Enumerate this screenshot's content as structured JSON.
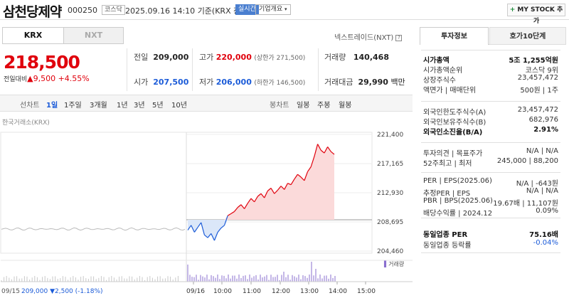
{
  "header": {
    "title": "삼천당제약",
    "code": "000250",
    "market": "코스닥",
    "datetime": "2025.09.16 14:10",
    "basis": "기준(KRX 장중)",
    "live": "실시간",
    "corp_info": "기업개요",
    "mystock": "MY STOCK 추가"
  },
  "tabs": [
    "KRX",
    "NXT"
  ],
  "nxt_label": "넥스트레이드(NXT)",
  "quote": {
    "price": "218,500",
    "change_label": "전일대비",
    "change": "9,500",
    "change_pct": "+4.55%"
  },
  "stats": {
    "prev_label": "전일",
    "prev": "209,000",
    "open_label": "시가",
    "open": "207,500",
    "high_label": "고가",
    "high": "220,000",
    "upper_label": "(상한가 271,500)",
    "low_label": "저가",
    "low": "206,000",
    "lower_label": "(하한가 146,500)",
    "vol_label": "거래량",
    "vol": "140,468",
    "amt_label": "거래대금",
    "amt": "29,990",
    "amt_unit": "백만"
  },
  "period": {
    "line_label": "선차트",
    "items": [
      "1일",
      "1주일",
      "3개월",
      "1년",
      "3년",
      "5년",
      "10년"
    ],
    "candle_label": "봉차트",
    "candles": [
      "일봉",
      "주봉",
      "월봉"
    ]
  },
  "chart_data": {
    "type": "line",
    "source": "한국거래소(KRX)",
    "yticks": [
      "221,400",
      "217,165",
      "212,930",
      "208,695",
      "204,460"
    ],
    "ylim": [
      204460,
      221400
    ],
    "prev_close": 209000,
    "xticks": [
      "09/16",
      "10:00",
      "11:00",
      "12:00",
      "13:00",
      "14:00",
      "15:00"
    ],
    "prev_day_label": "09/15",
    "prev_day_close": "209,000",
    "prev_day_change": "2,500",
    "prev_day_pct": "(-1.18%)",
    "volume_label": "거래량",
    "series": [
      {
        "name": "",
        "values": [
          207500,
          208200,
          207200,
          207900,
          208600,
          206800,
          206400,
          207000,
          206000,
          207200,
          207800,
          208200,
          209600,
          209900,
          210200,
          210800,
          211200,
          210600,
          211400,
          212100,
          211600,
          212400,
          212800,
          212200,
          213200,
          213600,
          212800,
          213300,
          213900,
          213400,
          214300,
          214100,
          214900,
          215600,
          215200,
          214700,
          216000,
          216700,
          218200,
          220000,
          219100,
          218700,
          219600,
          218900,
          218500
        ]
      }
    ],
    "colors": {
      "up": "#e0000c",
      "down": "#1b5bd8",
      "fill": "#fbdada"
    }
  },
  "info": {
    "tabs": [
      "투자정보",
      "호가10단계"
    ],
    "rows": [
      {
        "l": "시가총액",
        "r": "5조 1,255억원",
        "bold": true
      },
      {
        "l": "시가총액순위",
        "r": "코스닥 9위"
      },
      {
        "l": "상장주식수",
        "r": "23,457,472"
      },
      {
        "l": "액면가 | 매매단위",
        "r": "500원 | 1주"
      },
      {
        "l": "외국인한도주식수(A)",
        "r": "23,457,472"
      },
      {
        "l": "외국인보유주식수(B)",
        "r": "682,976"
      },
      {
        "l": "외국인소진율(B/A)",
        "r": "2.91%",
        "bold": true
      },
      {
        "l": "투자의견 | 목표주가",
        "r": "N/A | N/A"
      },
      {
        "l": "52주최고 | 최저",
        "r": "245,000 | 88,200"
      },
      {
        "l": "PER | EPS(2025.06)",
        "r": "N/A | -643원"
      },
      {
        "l": "추정PER | EPS",
        "r": "N/A | N/A"
      },
      {
        "l": "PBR | BPS(2025.06)",
        "r": "19.67배 | 11,107원"
      },
      {
        "l": "배당수익률 | 2024.12",
        "r": "0.09%"
      },
      {
        "l": "동일업종 PER",
        "r": "75.16배",
        "bold": true
      },
      {
        "l": "동일업종 등락률",
        "r": "-0.04%",
        "blue": true
      }
    ]
  }
}
